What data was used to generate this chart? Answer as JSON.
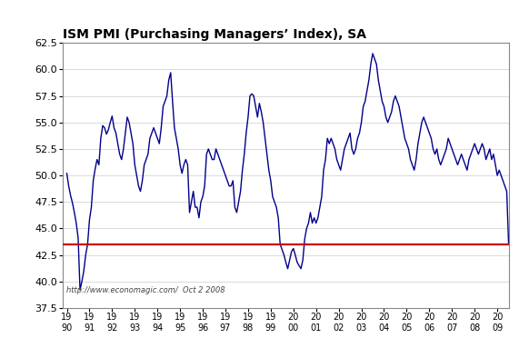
{
  "title": "ISM PMI (Purchasing Managers’ Index), SA",
  "line_color": "#00008B",
  "hline_color": "#CC0000",
  "hline_value": 43.5,
  "background_color": "#FFFFFF",
  "ylim": [
    37.5,
    62.5
  ],
  "yticks": [
    37.5,
    40.0,
    42.5,
    45.0,
    47.5,
    50.0,
    52.5,
    55.0,
    57.5,
    60.0,
    62.5
  ],
  "watermark": "http://www.economagic.com/  Oct 2 2008",
  "line_width": 1.0,
  "values": [
    50.2,
    49.0,
    48.1,
    47.4,
    46.5,
    45.5,
    44.1,
    39.2,
    40.0,
    41.0,
    42.5,
    43.5,
    45.8,
    47.0,
    49.5,
    50.6,
    51.5,
    51.0,
    53.5,
    54.7,
    54.5,
    53.9,
    54.3,
    55.0,
    55.6,
    54.5,
    54.0,
    53.0,
    52.0,
    51.5,
    52.5,
    54.0,
    55.5,
    55.0,
    54.0,
    53.0,
    51.0,
    50.0,
    49.0,
    48.5,
    49.5,
    51.0,
    51.5,
    52.0,
    53.5,
    54.0,
    54.5,
    54.0,
    53.5,
    53.0,
    54.5,
    56.5,
    57.0,
    57.5,
    59.0,
    59.7,
    57.0,
    54.5,
    53.5,
    52.5,
    51.0,
    50.2,
    51.0,
    51.5,
    51.0,
    46.5,
    47.5,
    48.5,
    47.0,
    47.0,
    46.0,
    47.5,
    48.0,
    49.0,
    52.0,
    52.5,
    52.0,
    51.5,
    51.5,
    52.5,
    52.0,
    51.5,
    51.0,
    50.5,
    50.0,
    49.5,
    49.0,
    49.0,
    49.5,
    47.0,
    46.5,
    47.5,
    48.5,
    50.5,
    52.0,
    54.0,
    55.5,
    57.5,
    57.7,
    57.5,
    56.5,
    55.5,
    56.8,
    56.0,
    55.0,
    53.5,
    52.0,
    50.5,
    49.5,
    48.0,
    47.5,
    47.0,
    46.0,
    43.5,
    43.0,
    42.5,
    41.8,
    41.2,
    42.0,
    42.8,
    43.1,
    42.5,
    41.8,
    41.5,
    41.2,
    42.0,
    44.0,
    45.0,
    45.5,
    46.5,
    45.5,
    46.0,
    45.5,
    46.0,
    47.0,
    48.0,
    50.5,
    51.5,
    53.5,
    53.0,
    53.5,
    53.0,
    52.5,
    51.5,
    51.0,
    50.5,
    51.5,
    52.5,
    53.0,
    53.5,
    54.0,
    52.5,
    52.0,
    52.5,
    53.5,
    54.0,
    55.0,
    56.5,
    57.0,
    58.0,
    59.0,
    60.5,
    61.5,
    61.0,
    60.5,
    59.0,
    58.0,
    57.0,
    56.5,
    55.5,
    55.0,
    55.5,
    56.0,
    57.0,
    57.5,
    57.0,
    56.5,
    55.5,
    54.5,
    53.5,
    53.0,
    52.5,
    51.5,
    51.0,
    50.5,
    51.5,
    53.0,
    54.0,
    55.0,
    55.5,
    55.0,
    54.5,
    54.0,
    53.5,
    52.5,
    52.0,
    52.5,
    51.5,
    51.0,
    51.5,
    52.0,
    52.5,
    53.5,
    53.0,
    52.5,
    52.0,
    51.5,
    51.0,
    51.5,
    52.0,
    51.5,
    51.0,
    50.5,
    51.5,
    52.0,
    52.5,
    53.0,
    52.5,
    52.0,
    52.5,
    53.0,
    52.5,
    51.5,
    52.0,
    52.5,
    51.5,
    52.0,
    51.0,
    50.0,
    50.5,
    50.0,
    49.5,
    49.0,
    48.5,
    43.5
  ]
}
